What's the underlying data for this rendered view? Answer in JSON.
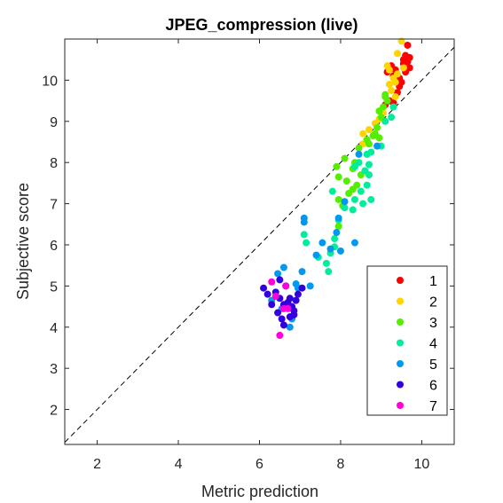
{
  "chart_data": {
    "type": "scatter",
    "title": "JPEG_compression (live)",
    "xlabel": "Metric prediction",
    "ylabel": "Subjective score",
    "xlim": [
      1.2,
      10.8
    ],
    "ylim": [
      1.15,
      11.0
    ],
    "xticks": [
      2,
      4,
      6,
      8,
      10
    ],
    "yticks": [
      2,
      3,
      4,
      5,
      6,
      7,
      8,
      9,
      10
    ],
    "grid": false,
    "legend_position": "bottom-right",
    "reference_line": "dashed diagonal y = x",
    "series": [
      {
        "name": "1",
        "color": "#ff0000",
        "points": [
          [
            9.25,
            10.35
          ],
          [
            9.35,
            10.25
          ],
          [
            9.3,
            10.1
          ],
          [
            9.45,
            10.05
          ],
          [
            9.6,
            10.2
          ],
          [
            9.65,
            10.45
          ],
          [
            9.55,
            10.5
          ],
          [
            9.6,
            10.6
          ],
          [
            9.7,
            10.55
          ],
          [
            9.65,
            10.85
          ],
          [
            9.5,
            9.95
          ],
          [
            9.4,
            9.7
          ],
          [
            9.2,
            9.5
          ],
          [
            9.1,
            9.4
          ],
          [
            9.3,
            9.45
          ],
          [
            9.45,
            9.85
          ],
          [
            9.55,
            10.4
          ],
          [
            9.7,
            10.3
          ],
          [
            9.35,
            10.0
          ],
          [
            9.15,
            10.2
          ]
        ]
      },
      {
        "name": "2",
        "color": "#ffd400",
        "points": [
          [
            9.5,
            10.95
          ],
          [
            9.4,
            10.65
          ],
          [
            9.55,
            10.3
          ],
          [
            9.2,
            10.25
          ],
          [
            9.3,
            10.05
          ],
          [
            9.35,
            9.95
          ],
          [
            9.2,
            9.9
          ],
          [
            9.05,
            9.2
          ],
          [
            8.85,
            8.95
          ],
          [
            8.95,
            9.05
          ],
          [
            8.7,
            8.8
          ],
          [
            8.55,
            8.7
          ],
          [
            8.55,
            8.45
          ],
          [
            9.25,
            9.75
          ],
          [
            9.4,
            10.15
          ],
          [
            9.15,
            10.35
          ],
          [
            9.35,
            9.6
          ]
        ]
      },
      {
        "name": "3",
        "color": "#55ee00",
        "points": [
          [
            9.1,
            9.65
          ],
          [
            9.15,
            9.5
          ],
          [
            9.05,
            9.35
          ],
          [
            8.95,
            9.25
          ],
          [
            9.0,
            9.1
          ],
          [
            8.9,
            8.85
          ],
          [
            8.85,
            8.7
          ],
          [
            8.7,
            8.45
          ],
          [
            8.65,
            8.55
          ],
          [
            8.95,
            8.6
          ],
          [
            8.8,
            8.65
          ],
          [
            8.45,
            8.35
          ],
          [
            8.35,
            8.0
          ],
          [
            8.1,
            8.1
          ],
          [
            7.9,
            7.9
          ],
          [
            8.3,
            7.85
          ],
          [
            8.5,
            7.7
          ],
          [
            7.95,
            7.65
          ],
          [
            8.4,
            7.45
          ],
          [
            8.3,
            7.35
          ],
          [
            8.2,
            7.25
          ],
          [
            7.95,
            7.1
          ],
          [
            8.05,
            6.95
          ],
          [
            7.95,
            6.45
          ],
          [
            8.15,
            7.55
          ],
          [
            9.1,
            9.6
          ]
        ]
      },
      {
        "name": "4",
        "color": "#00ee99",
        "points": [
          [
            8.35,
            7.9
          ],
          [
            8.45,
            8.0
          ],
          [
            8.6,
            7.8
          ],
          [
            8.75,
            8.25
          ],
          [
            8.65,
            8.2
          ],
          [
            9.0,
            8.4
          ],
          [
            9.1,
            9.0
          ],
          [
            9.25,
            9.1
          ],
          [
            9.3,
            9.35
          ],
          [
            8.7,
            7.7
          ],
          [
            8.5,
            7.3
          ],
          [
            8.55,
            7.0
          ],
          [
            8.65,
            7.45
          ],
          [
            8.35,
            7.1
          ],
          [
            8.3,
            6.85
          ],
          [
            8.1,
            6.9
          ],
          [
            7.8,
            7.3
          ],
          [
            7.95,
            6.6
          ],
          [
            7.85,
            6.15
          ],
          [
            7.85,
            5.95
          ],
          [
            7.65,
            5.55
          ],
          [
            7.7,
            5.35
          ],
          [
            7.75,
            5.8
          ],
          [
            7.1,
            6.25
          ],
          [
            7.15,
            6.05
          ],
          [
            7.45,
            5.7
          ],
          [
            8.7,
            7.95
          ],
          [
            8.75,
            7.1
          ]
        ]
      },
      {
        "name": "5",
        "color": "#0099ee",
        "points": [
          [
            8.45,
            8.2
          ],
          [
            8.9,
            8.4
          ],
          [
            8.1,
            7.05
          ],
          [
            7.95,
            6.65
          ],
          [
            7.9,
            6.3
          ],
          [
            8.35,
            6.05
          ],
          [
            8.0,
            5.85
          ],
          [
            7.75,
            5.9
          ],
          [
            7.55,
            6.05
          ],
          [
            7.4,
            5.75
          ],
          [
            7.1,
            6.55
          ],
          [
            7.1,
            6.65
          ],
          [
            7.05,
            5.35
          ],
          [
            6.9,
            5.05
          ],
          [
            7.25,
            5.0
          ],
          [
            6.95,
            4.95
          ],
          [
            6.8,
            4.2
          ],
          [
            6.75,
            4.0
          ],
          [
            6.6,
            5.45
          ],
          [
            6.45,
            5.3
          ],
          [
            6.3,
            4.65
          ],
          [
            6.55,
            4.45
          ]
        ]
      },
      {
        "name": "6",
        "color": "#3300dd",
        "points": [
          [
            6.1,
            4.95
          ],
          [
            6.2,
            4.8
          ],
          [
            6.3,
            4.55
          ],
          [
            6.4,
            4.85
          ],
          [
            6.5,
            4.7
          ],
          [
            6.45,
            4.35
          ],
          [
            6.55,
            4.2
          ],
          [
            6.6,
            4.05
          ],
          [
            6.7,
            4.6
          ],
          [
            6.8,
            4.5
          ],
          [
            6.75,
            4.25
          ],
          [
            6.85,
            4.4
          ],
          [
            6.9,
            4.65
          ],
          [
            6.95,
            4.8
          ],
          [
            7.05,
            4.95
          ],
          [
            6.65,
            5.0
          ],
          [
            6.5,
            5.15
          ],
          [
            6.75,
            4.7
          ],
          [
            6.6,
            4.55
          ],
          [
            6.85,
            4.3
          ]
        ]
      },
      {
        "name": "7",
        "color": "#ff00dd",
        "points": [
          [
            6.3,
            5.1
          ],
          [
            6.65,
            5.0
          ],
          [
            6.4,
            4.75
          ],
          [
            6.7,
            4.45
          ],
          [
            6.5,
            3.8
          ],
          [
            6.6,
            4.45
          ]
        ]
      }
    ]
  }
}
